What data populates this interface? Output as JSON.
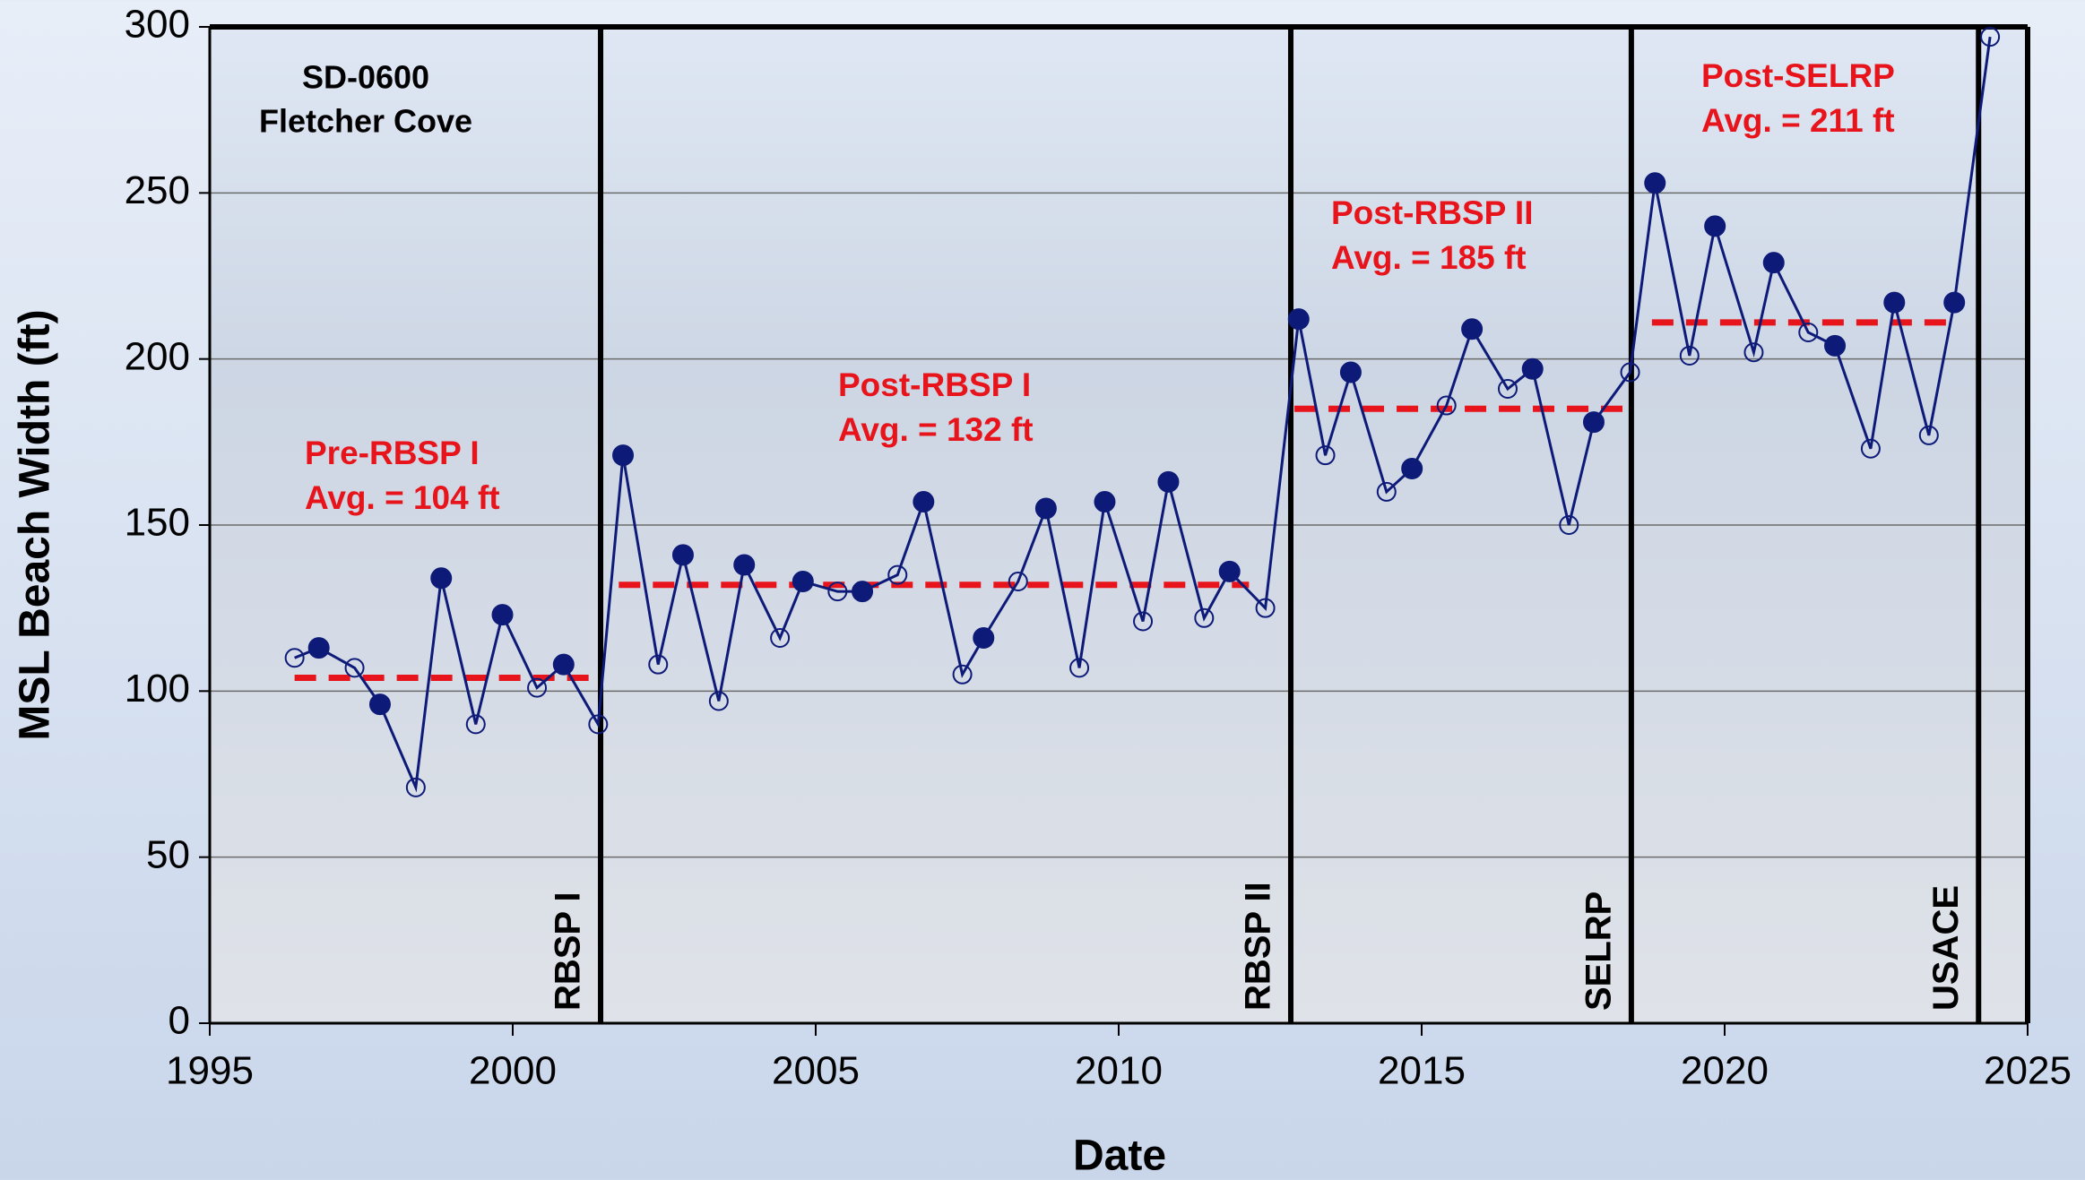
{
  "chart_data": {
    "type": "line",
    "title_lines": [
      "SD-0600",
      "Fletcher Cove"
    ],
    "x_label": "Date",
    "y_label": "MSL Beach Width (ft)",
    "xlim": [
      1995,
      2025
    ],
    "xticks": [
      1995,
      2000,
      2005,
      2010,
      2015,
      2020,
      2025
    ],
    "ylim": [
      0,
      300
    ],
    "yticks": [
      0,
      50,
      100,
      150,
      200,
      250,
      300
    ],
    "grid": true,
    "series": [
      {
        "color": "#0d1a78",
        "x": [
          1996.4,
          1996.8,
          1997.39,
          1997.81,
          1998.4,
          1998.82,
          1999.39,
          1999.83,
          2000.4,
          2000.84,
          2001.41,
          2001.82,
          2002.4,
          2002.81,
          2003.4,
          2003.82,
          2004.41,
          2004.79,
          2005.36,
          2005.77,
          2006.35,
          2006.78,
          2007.42,
          2007.77,
          2008.34,
          2008.8,
          2009.35,
          2009.77,
          2010.4,
          2010.82,
          2011.41,
          2011.83,
          2012.42,
          2012.97,
          2013.41,
          2013.83,
          2014.42,
          2014.84,
          2015.41,
          2015.83,
          2016.42,
          2016.83,
          2017.43,
          2017.84,
          2018.44,
          2018.85,
          2019.42,
          2019.84,
          2020.48,
          2020.81,
          2021.38,
          2021.82,
          2022.41,
          2022.8,
          2023.37,
          2023.79,
          2024.38
        ],
        "values": [
          110,
          113,
          107,
          96,
          71,
          134,
          90,
          123,
          101,
          108,
          90,
          171,
          108,
          141,
          97,
          138,
          116,
          133,
          130,
          130,
          135,
          157,
          105,
          116,
          133,
          155,
          107,
          157,
          121,
          163,
          122,
          136,
          125,
          212,
          171,
          196,
          160,
          167,
          186,
          209,
          191,
          197,
          150,
          181,
          196,
          253,
          201,
          240,
          202,
          229,
          208,
          204,
          173,
          217,
          177,
          217,
          297
        ],
        "markers": [
          "open",
          "filled",
          "open",
          "filled",
          "open",
          "filled",
          "open",
          "filled",
          "open",
          "filled",
          "open",
          "filled",
          "open",
          "filled",
          "open",
          "filled",
          "open",
          "filled",
          "open",
          "filled",
          "open",
          "filled",
          "open",
          "filled",
          "open",
          "filled",
          "open",
          "filled",
          "open",
          "filled",
          "open",
          "filled",
          "open",
          "filled",
          "open",
          "filled",
          "open",
          "filled",
          "open",
          "filled",
          "open",
          "filled",
          "open",
          "filled",
          "open",
          "filled",
          "open",
          "filled",
          "open",
          "filled",
          "open",
          "filled",
          "open",
          "filled",
          "open",
          "filled",
          "open"
        ]
      }
    ],
    "events": [
      {
        "label": "RBSP I",
        "x": 2001.45
      },
      {
        "label": "RBSP II",
        "x": 2012.84
      },
      {
        "label": "SELRP",
        "x": 2018.46
      },
      {
        "label": "USACE",
        "x": 2024.19
      }
    ],
    "averages": [
      {
        "label": "Pre-RBSP I",
        "value": 104,
        "value_label": "Avg. = 104  ft",
        "x_start": 1996.4,
        "x_end": 2001.45
      },
      {
        "label": "Post-RBSP I",
        "value": 132,
        "value_label": "Avg. = 132  ft",
        "x_start": 2001.75,
        "x_end": 2012.15
      },
      {
        "label": "Post-RBSP II",
        "value": 185,
        "value_label": "Avg. = 185  ft",
        "x_start": 2012.9,
        "x_end": 2018.35
      },
      {
        "label": "Post-SELRP",
        "value": 211,
        "value_label": "Avg. = 211  ft",
        "x_start": 2018.8,
        "x_end": 2023.75
      }
    ],
    "average_color": "#e8141c"
  }
}
